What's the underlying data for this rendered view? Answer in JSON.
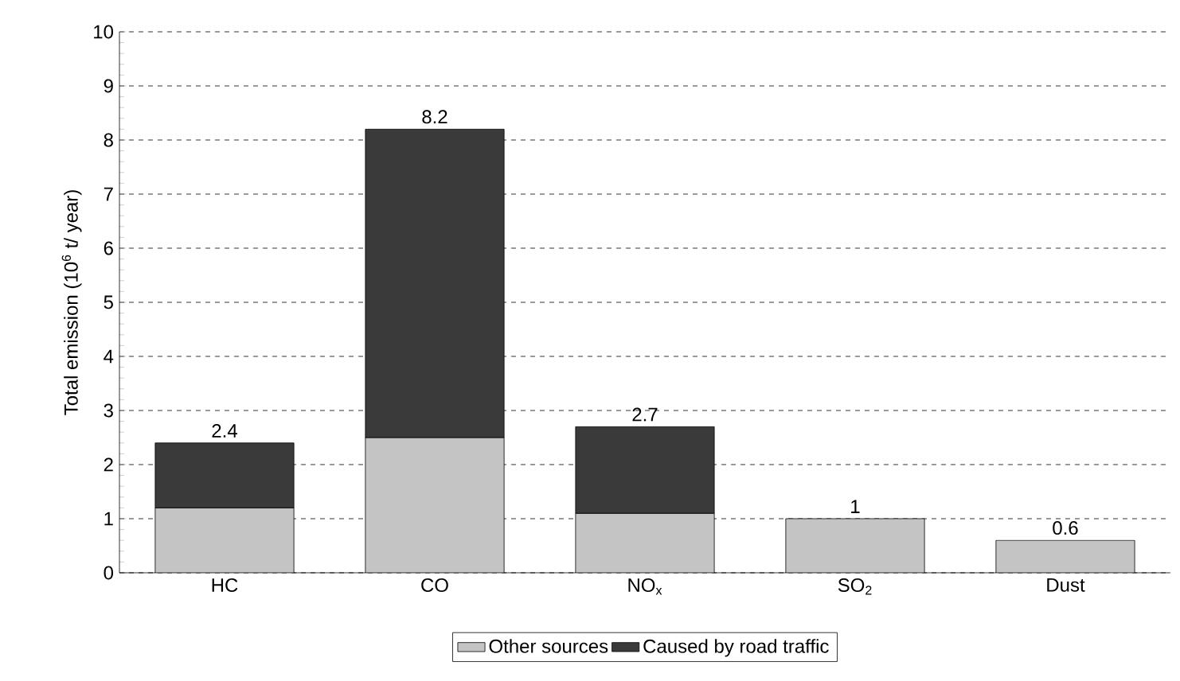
{
  "chart_data": {
    "type": "bar",
    "stacked": true,
    "ylabel": "Total emission (10$^{6}$ t/ year)",
    "categories": [
      "HC",
      "CO",
      "NO$_{x}$",
      "SO$_{2}$",
      "Dust"
    ],
    "series": [
      {
        "name": "Other sources",
        "color": "#c4c4c4",
        "values": [
          1.2,
          2.5,
          1.1,
          1,
          0.6
        ]
      },
      {
        "name": "Caused by road traffic",
        "color": "#3a3a3a",
        "values": [
          1.2,
          5.7,
          1.6,
          null,
          null
        ]
      }
    ],
    "totals": [
      "2.4",
      "8.2",
      "2.7",
      "1",
      "0.6"
    ],
    "ylim": [
      0,
      10
    ],
    "yticks": [
      0,
      1,
      2,
      3,
      4,
      5,
      6,
      7,
      8,
      9,
      10
    ],
    "grid": "y",
    "legend": "bottom"
  }
}
